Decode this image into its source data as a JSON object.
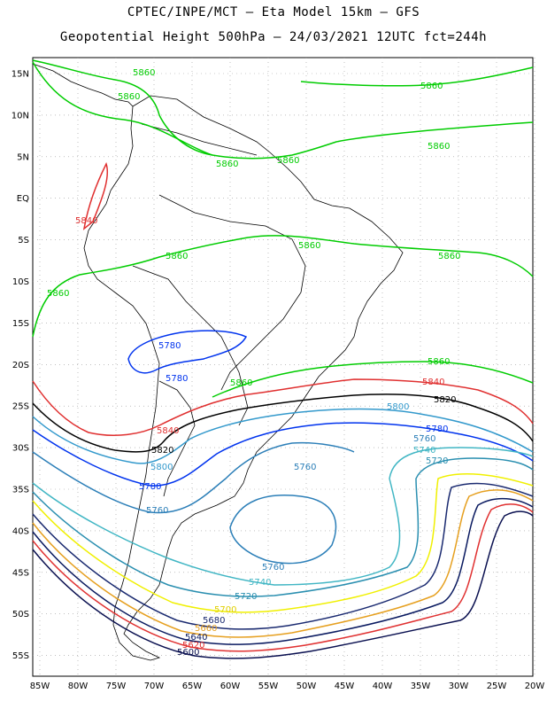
{
  "title_line1": "CPTEC/INPE/MCT —  Eta Model 15km — GFS",
  "title_line2": "Geopotential Height 500hPa — 24/03/2021 12UTC fct=244h",
  "lat_labels": [
    "15N",
    "10N",
    "5N",
    "EQ",
    "5S",
    "10S",
    "15S",
    "20S",
    "25S",
    "30S",
    "35S",
    "40S",
    "45S",
    "50S",
    "55S"
  ],
  "lon_labels": [
    "85W",
    "80W",
    "75W",
    "70W",
    "65W",
    "60W",
    "55W",
    "50W",
    "45W",
    "40W",
    "35W",
    "30W",
    "25W",
    "20W"
  ],
  "colors": {
    "c5860": "#00cc00",
    "c5840": "#e03030",
    "c5820": "#000000",
    "c5800": "#3399cc",
    "c5780": "#0033ee",
    "c5760": "#2c7fb8",
    "c5740": "#41b6c4",
    "c5720": "#2a8fb0",
    "c5700": "#f0f000",
    "c5680": "#1a2a70",
    "c5660": "#e6a020",
    "c5640": "#0a1a60",
    "c5620": "#e03030",
    "c5600": "#0a1050"
  },
  "contour_labels": [
    {
      "text": "5860",
      "color": "#00cc00"
    },
    {
      "text": "5840",
      "color": "#e03030"
    },
    {
      "text": "5820",
      "color": "#000000"
    },
    {
      "text": "5800",
      "color": "#3399cc"
    },
    {
      "text": "5780",
      "color": "#0033ee"
    },
    {
      "text": "5760",
      "color": "#2c7fb8"
    },
    {
      "text": "5740",
      "color": "#41b6c4"
    },
    {
      "text": "5720",
      "color": "#2a8fb0"
    },
    {
      "text": "5700",
      "color": "#e0d000"
    },
    {
      "text": "5680",
      "color": "#1a2a70"
    },
    {
      "text": "5660",
      "color": "#e6a020"
    },
    {
      "text": "5640",
      "color": "#0a1a60"
    },
    {
      "text": "5620",
      "color": "#e03030"
    },
    {
      "text": "5600",
      "color": "#0a1050"
    }
  ]
}
